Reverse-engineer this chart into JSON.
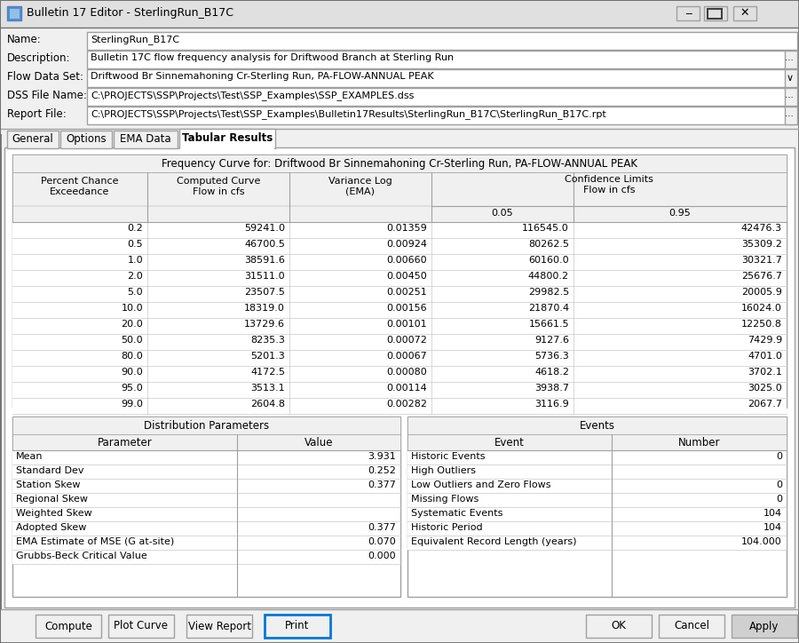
{
  "title_bar": "Bulletin 17 Editor - SterlingRun_B17C",
  "name_value": "SterlingRun_B17C",
  "description_value": "Bulletin 17C flow frequency analysis for Driftwood Branch at Sterling Run",
  "flow_data_set_value": "Driftwood Br Sinnemahoning Cr-Sterling Run, PA-FLOW-ANNUAL PEAK",
  "dss_file_value": "C:\\PROJECTS\\SSP\\Projects\\Test\\SSP_Examples\\SSP_EXAMPLES.dss",
  "report_file_value": "C:\\PROJECTS\\SSP\\Projects\\Test\\SSP_Examples\\Bulletin17Results\\SterlingRun_B17C\\SterlingRun_B17C.rpt",
  "tabs": [
    "General",
    "Options",
    "EMA Data",
    "Tabular Results"
  ],
  "active_tab": "Tabular Results",
  "freq_table_title": "Frequency Curve for: Driftwood Br Sinnemahoning Cr-Sterling Run, PA-FLOW-ANNUAL PEAK",
  "freq_data": [
    [
      0.2,
      59241.0,
      0.01359,
      116545.0,
      42476.3
    ],
    [
      0.5,
      46700.5,
      0.00924,
      80262.5,
      35309.2
    ],
    [
      1.0,
      38591.6,
      0.0066,
      60160.0,
      30321.7
    ],
    [
      2.0,
      31511.0,
      0.0045,
      44800.2,
      25676.7
    ],
    [
      5.0,
      23507.5,
      0.00251,
      29982.5,
      20005.9
    ],
    [
      10.0,
      18319.0,
      0.00156,
      21870.4,
      16024.0
    ],
    [
      20.0,
      13729.6,
      0.00101,
      15661.5,
      12250.8
    ],
    [
      50.0,
      8235.3,
      0.00072,
      9127.6,
      7429.9
    ],
    [
      80.0,
      5201.3,
      0.00067,
      5736.3,
      4701.0
    ],
    [
      90.0,
      4172.5,
      0.0008,
      4618.2,
      3702.1
    ],
    [
      95.0,
      3513.1,
      0.00114,
      3938.7,
      3025.0
    ],
    [
      99.0,
      2604.8,
      0.00282,
      3116.9,
      2067.7
    ]
  ],
  "dist_params": [
    [
      "Mean",
      "3.931"
    ],
    [
      "Standard Dev",
      "0.252"
    ],
    [
      "Station Skew",
      "0.377"
    ],
    [
      "Regional Skew",
      ""
    ],
    [
      "Weighted Skew",
      ""
    ],
    [
      "Adopted Skew",
      "0.377"
    ],
    [
      "EMA Estimate of MSE (G at-site)",
      "0.070"
    ],
    [
      "Grubbs-Beck Critical Value",
      "0.000"
    ]
  ],
  "events_data": [
    [
      "Historic Events",
      "0"
    ],
    [
      "High Outliers",
      ""
    ],
    [
      "Low Outliers and Zero Flows",
      "0"
    ],
    [
      "Missing Flows",
      "0"
    ],
    [
      "Systematic Events",
      "104"
    ],
    [
      "Historic Period",
      "104"
    ],
    [
      "Equivalent Record Length (years)",
      "104.000"
    ]
  ],
  "buttons_left": [
    "Compute",
    "Plot Curve",
    "View Report",
    "Print"
  ],
  "buttons_right": [
    "OK",
    "Cancel",
    "Apply"
  ],
  "bg_color": "#f0f0f0",
  "titlebar_color": "#e0e0e0",
  "white": "#ffffff",
  "light_gray": "#f0f0f0",
  "border_dark": "#707070",
  "border_mid": "#a0a0a0",
  "border_light": "#c8c8c8",
  "blue_border": "#0078d7",
  "apply_bg": "#d0d0d0"
}
